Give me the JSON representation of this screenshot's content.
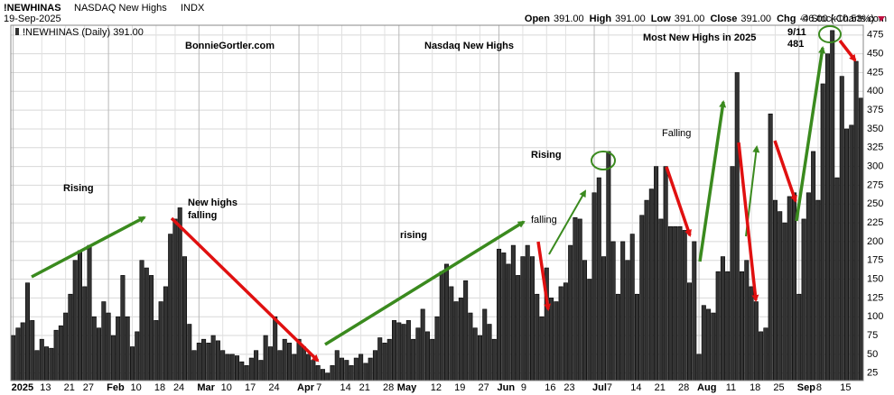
{
  "chart_data": {
    "type": "bar",
    "header": {
      "symbol": "!NEWHINAS",
      "name": "NASDAQ New Highs",
      "exchange": "INDX",
      "date": "19-Sep-2025",
      "quote": [
        {
          "label": "Open",
          "value": "391.00"
        },
        {
          "label": "High",
          "value": "391.00"
        },
        {
          "label": "Low",
          "value": "391.00"
        },
        {
          "label": "Close",
          "value": "391.00"
        },
        {
          "label": "Chg",
          "value": "-46.00 (-10.53%)"
        }
      ],
      "credit": "© StockCharts.com"
    },
    "legend_label": "!NEWHINAS (Daily) 391.00",
    "annotations": {
      "site": "BonnieGortler.com",
      "title": "Nasdaq New Highs",
      "most": "Most New Highs in 2025",
      "peak_date": "9/11",
      "peak_value": "481",
      "rising1": "Rising",
      "falling1a": "New highs",
      "falling1b": "falling",
      "rising2": "rising",
      "falling2": "falling",
      "rising3": "Rising",
      "falling3": "Falling"
    },
    "categories": [
      "2025",
      null,
      null,
      null,
      null,
      null,
      "13",
      null,
      null,
      null,
      null,
      "21",
      null,
      null,
      null,
      "27",
      null,
      null,
      null,
      null,
      "Feb",
      null,
      null,
      null,
      null,
      "10",
      null,
      null,
      null,
      null,
      "18",
      null,
      null,
      null,
      "24",
      null,
      null,
      null,
      null,
      "Mar",
      null,
      null,
      null,
      null,
      "10",
      null,
      null,
      null,
      null,
      "17",
      null,
      null,
      null,
      null,
      "24",
      null,
      null,
      null,
      null,
      null,
      "Apr",
      null,
      null,
      null,
      "7",
      null,
      null,
      null,
      null,
      "14",
      null,
      null,
      null,
      "21",
      null,
      null,
      null,
      null,
      "28",
      null,
      null,
      "May",
      null,
      null,
      null,
      null,
      null,
      null,
      "12",
      null,
      null,
      null,
      null,
      "19",
      null,
      null,
      null,
      null,
      "27",
      null,
      null,
      null,
      "Jun",
      null,
      null,
      null,
      null,
      "9",
      null,
      null,
      null,
      null,
      "16",
      null,
      null,
      null,
      "23",
      null,
      null,
      null,
      null,
      null,
      "Jul",
      null,
      null,
      "7",
      null,
      null,
      null,
      null,
      "14",
      null,
      null,
      null,
      null,
      "21",
      null,
      null,
      null,
      null,
      "28",
      null,
      null,
      null,
      "Aug",
      null,
      null,
      null,
      null,
      null,
      "11",
      null,
      null,
      null,
      null,
      "18",
      null,
      null,
      null,
      null,
      "25",
      null,
      null,
      null,
      null,
      "Sep",
      null,
      null,
      null,
      "8",
      null,
      null,
      null,
      null,
      "15",
      null,
      null,
      null,
      null
    ],
    "values": [
      75,
      85,
      92,
      145,
      95,
      55,
      70,
      60,
      58,
      82,
      88,
      105,
      130,
      175,
      188,
      140,
      195,
      100,
      85,
      120,
      105,
      75,
      100,
      155,
      100,
      60,
      80,
      175,
      165,
      155,
      95,
      120,
      140,
      210,
      230,
      245,
      180,
      90,
      55,
      65,
      70,
      65,
      75,
      68,
      55,
      50,
      50,
      48,
      40,
      35,
      45,
      55,
      42,
      75,
      60,
      100,
      55,
      70,
      65,
      50,
      70,
      60,
      50,
      42,
      35,
      30,
      25,
      35,
      55,
      45,
      42,
      35,
      45,
      50,
      38,
      45,
      55,
      72,
      65,
      70,
      95,
      92,
      90,
      95,
      70,
      85,
      110,
      80,
      70,
      100,
      160,
      170,
      140,
      120,
      125,
      148,
      105,
      85,
      75,
      110,
      90,
      70,
      190,
      185,
      170,
      195,
      155,
      180,
      195,
      180,
      130,
      100,
      165,
      125,
      120,
      140,
      145,
      195,
      232,
      230,
      175,
      150,
      265,
      285,
      180,
      320,
      200,
      130,
      200,
      175,
      210,
      130,
      235,
      255,
      270,
      300,
      230,
      300,
      220,
      220,
      220,
      215,
      145,
      200,
      50,
      115,
      110,
      105,
      160,
      180,
      160,
      300,
      425,
      160,
      175,
      140,
      120,
      80,
      85,
      370,
      255,
      240,
      225,
      260,
      265,
      130,
      230,
      265,
      320,
      255,
      410,
      450,
      481,
      285,
      420,
      350,
      355,
      440,
      391
    ],
    "color": "#333333",
    "ylim": [
      15,
      488
    ],
    "yticks": [
      25,
      50,
      75,
      100,
      125,
      150,
      175,
      200,
      225,
      250,
      275,
      300,
      325,
      350,
      375,
      400,
      425,
      450,
      475
    ],
    "grid": true
  }
}
